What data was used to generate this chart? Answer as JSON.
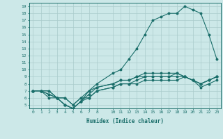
{
  "xlabel": "Humidex (Indice chaleur)",
  "bg_color": "#cce8e8",
  "line_color": "#1a6e6a",
  "grid_color": "#aacccc",
  "xlim": [
    -0.5,
    23.5
  ],
  "ylim": [
    4.5,
    19.5
  ],
  "xticks": [
    0,
    1,
    2,
    3,
    4,
    5,
    6,
    7,
    8,
    10,
    11,
    12,
    13,
    14,
    15,
    16,
    17,
    18,
    19,
    20,
    21,
    22,
    23
  ],
  "yticks": [
    5,
    6,
    7,
    8,
    9,
    10,
    11,
    12,
    13,
    14,
    15,
    16,
    17,
    18,
    19
  ],
  "lines": [
    [
      0,
      7,
      1,
      7,
      2,
      7,
      3,
      6,
      4,
      6,
      5,
      5,
      6,
      6,
      7,
      6,
      8,
      7,
      10,
      7.5,
      11,
      8,
      12,
      8,
      13,
      8,
      14,
      8.5,
      15,
      8.5,
      16,
      8.5,
      17,
      8.5,
      18,
      8.5,
      19,
      9,
      20,
      8.5,
      21,
      7.5,
      22,
      8,
      23,
      8.5
    ],
    [
      0,
      7,
      1,
      7,
      2,
      7,
      3,
      6,
      4,
      6,
      5,
      5,
      6,
      6,
      7,
      7,
      8,
      7.5,
      10,
      8,
      11,
      8.5,
      12,
      8.5,
      13,
      9,
      14,
      9,
      15,
      9,
      16,
      9,
      17,
      9,
      18,
      9,
      19,
      9,
      20,
      8.5,
      21,
      8,
      22,
      8.5,
      23,
      9
    ],
    [
      0,
      7,
      1,
      7,
      2,
      6,
      3,
      6,
      4,
      5,
      5,
      4.5,
      6,
      5.5,
      7,
      6,
      8,
      7,
      10,
      7.5,
      11,
      8,
      12,
      8,
      13,
      8.5,
      14,
      9,
      15,
      9,
      16,
      9,
      17,
      9,
      18,
      9.5,
      19,
      9,
      20,
      8.5,
      21,
      8,
      22,
      8.5,
      23,
      9
    ],
    [
      0,
      7,
      1,
      7,
      2,
      6.5,
      3,
      6,
      4,
      5,
      5,
      4.5,
      6,
      5.5,
      7,
      6.5,
      8,
      7.5,
      10,
      8,
      11,
      8.5,
      12,
      8.5,
      13,
      9,
      14,
      9.5,
      15,
      9.5,
      16,
      9.5,
      17,
      9.5,
      18,
      9.5,
      19,
      9,
      20,
      8.5,
      21,
      8,
      22,
      8.5,
      23,
      9
    ],
    [
      0,
      7,
      1,
      7,
      2,
      6.5,
      3,
      6,
      4,
      5,
      5,
      4.5,
      6,
      5.5,
      7,
      7,
      8,
      8,
      10,
      9.5,
      11,
      10,
      12,
      11.5,
      13,
      13,
      14,
      15,
      15,
      17,
      16,
      17.5,
      17,
      18,
      18,
      18,
      19,
      19,
      20,
      18.5,
      21,
      18,
      22,
      15,
      23,
      11.5
    ]
  ]
}
